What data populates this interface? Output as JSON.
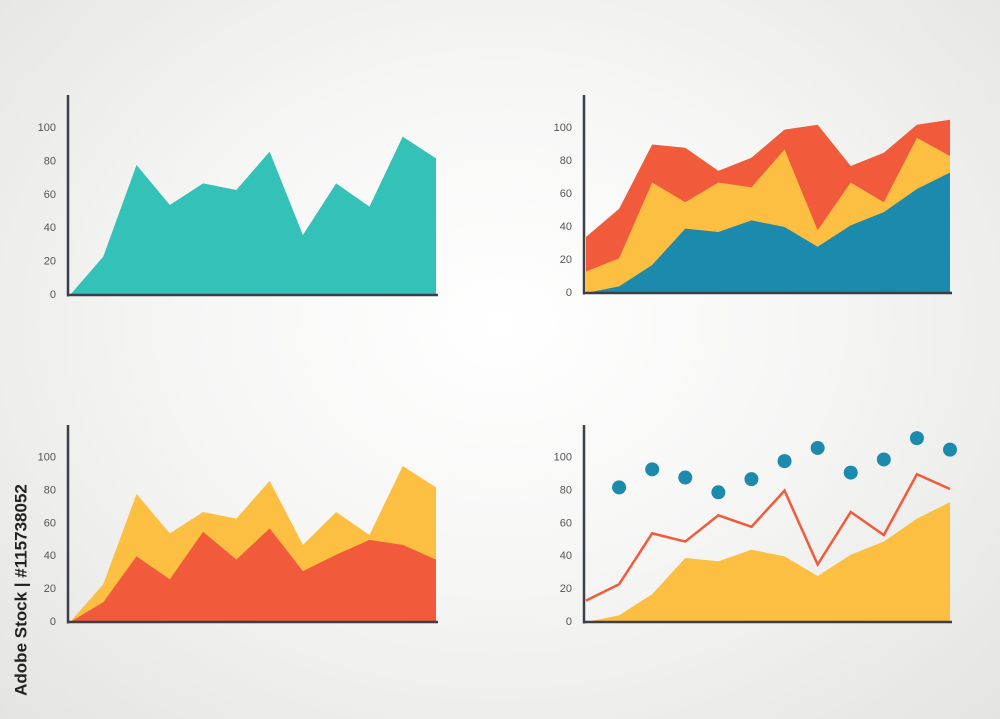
{
  "chart_data": [
    {
      "type": "area",
      "categories": [
        null,
        null,
        null,
        null,
        null,
        null,
        null,
        null,
        null,
        null,
        null,
        null
      ],
      "series": [
        {
          "color": "#33c1b8",
          "values": [
            0,
            23,
            78,
            54,
            67,
            63,
            86,
            36,
            67,
            53,
            95,
            82
          ]
        }
      ],
      "ylim": [
        0,
        120
      ],
      "yticks": [
        0,
        20,
        40,
        60,
        80,
        100
      ],
      "grid": false
    },
    {
      "type": "area",
      "categories": [
        null,
        null,
        null,
        null,
        null,
        null,
        null,
        null,
        null,
        null,
        null,
        null
      ],
      "series": [
        {
          "color": "#f15a3a",
          "values": [
            34,
            51,
            90,
            88,
            74,
            82,
            99,
            102,
            77,
            85,
            102,
            105
          ]
        },
        {
          "color": "#fcbf42",
          "values": [
            13,
            21,
            67,
            55,
            67,
            64,
            87,
            38,
            67,
            55,
            94,
            83
          ]
        },
        {
          "color": "#1b8aad",
          "values": [
            0,
            4,
            17,
            39,
            37,
            44,
            40,
            28,
            41,
            49,
            63,
            73
          ]
        }
      ],
      "ylim": [
        0,
        120
      ],
      "yticks": [
        0,
        20,
        40,
        60,
        80,
        100
      ],
      "grid": false
    },
    {
      "type": "area",
      "categories": [
        null,
        null,
        null,
        null,
        null,
        null,
        null,
        null,
        null,
        null,
        null,
        null
      ],
      "series": [
        {
          "color": "#fcbf42",
          "values": [
            0,
            23,
            78,
            54,
            67,
            63,
            86,
            47,
            67,
            53,
            95,
            82
          ]
        },
        {
          "color": "#f15a3a",
          "values": [
            0,
            12,
            40,
            26,
            55,
            38,
            57,
            31,
            41,
            50,
            47,
            38
          ]
        }
      ],
      "ylim": [
        0,
        120
      ],
      "yticks": [
        0,
        20,
        40,
        60,
        80,
        100
      ],
      "grid": false
    },
    {
      "type": "area",
      "categories": [
        null,
        null,
        null,
        null,
        null,
        null,
        null,
        null,
        null,
        null,
        null,
        null
      ],
      "series": [
        {
          "type": "area",
          "color": "#fcbf42",
          "values": [
            0,
            4,
            17,
            39,
            37,
            44,
            40,
            28,
            41,
            49,
            63,
            73
          ]
        },
        {
          "type": "line",
          "color": "#f15a3a",
          "values": [
            13,
            23,
            54,
            49,
            65,
            58,
            80,
            35,
            67,
            53,
            90,
            81
          ]
        },
        {
          "type": "scatter",
          "color": "#1b8aad",
          "values": [
            null,
            82,
            93,
            88,
            79,
            87,
            98,
            106,
            91,
            99,
            112,
            105
          ]
        }
      ],
      "ylim": [
        0,
        120
      ],
      "yticks": [
        0,
        20,
        40,
        60,
        80,
        100
      ],
      "grid": false
    }
  ],
  "watermark": "Adobe Stock | #115738052"
}
